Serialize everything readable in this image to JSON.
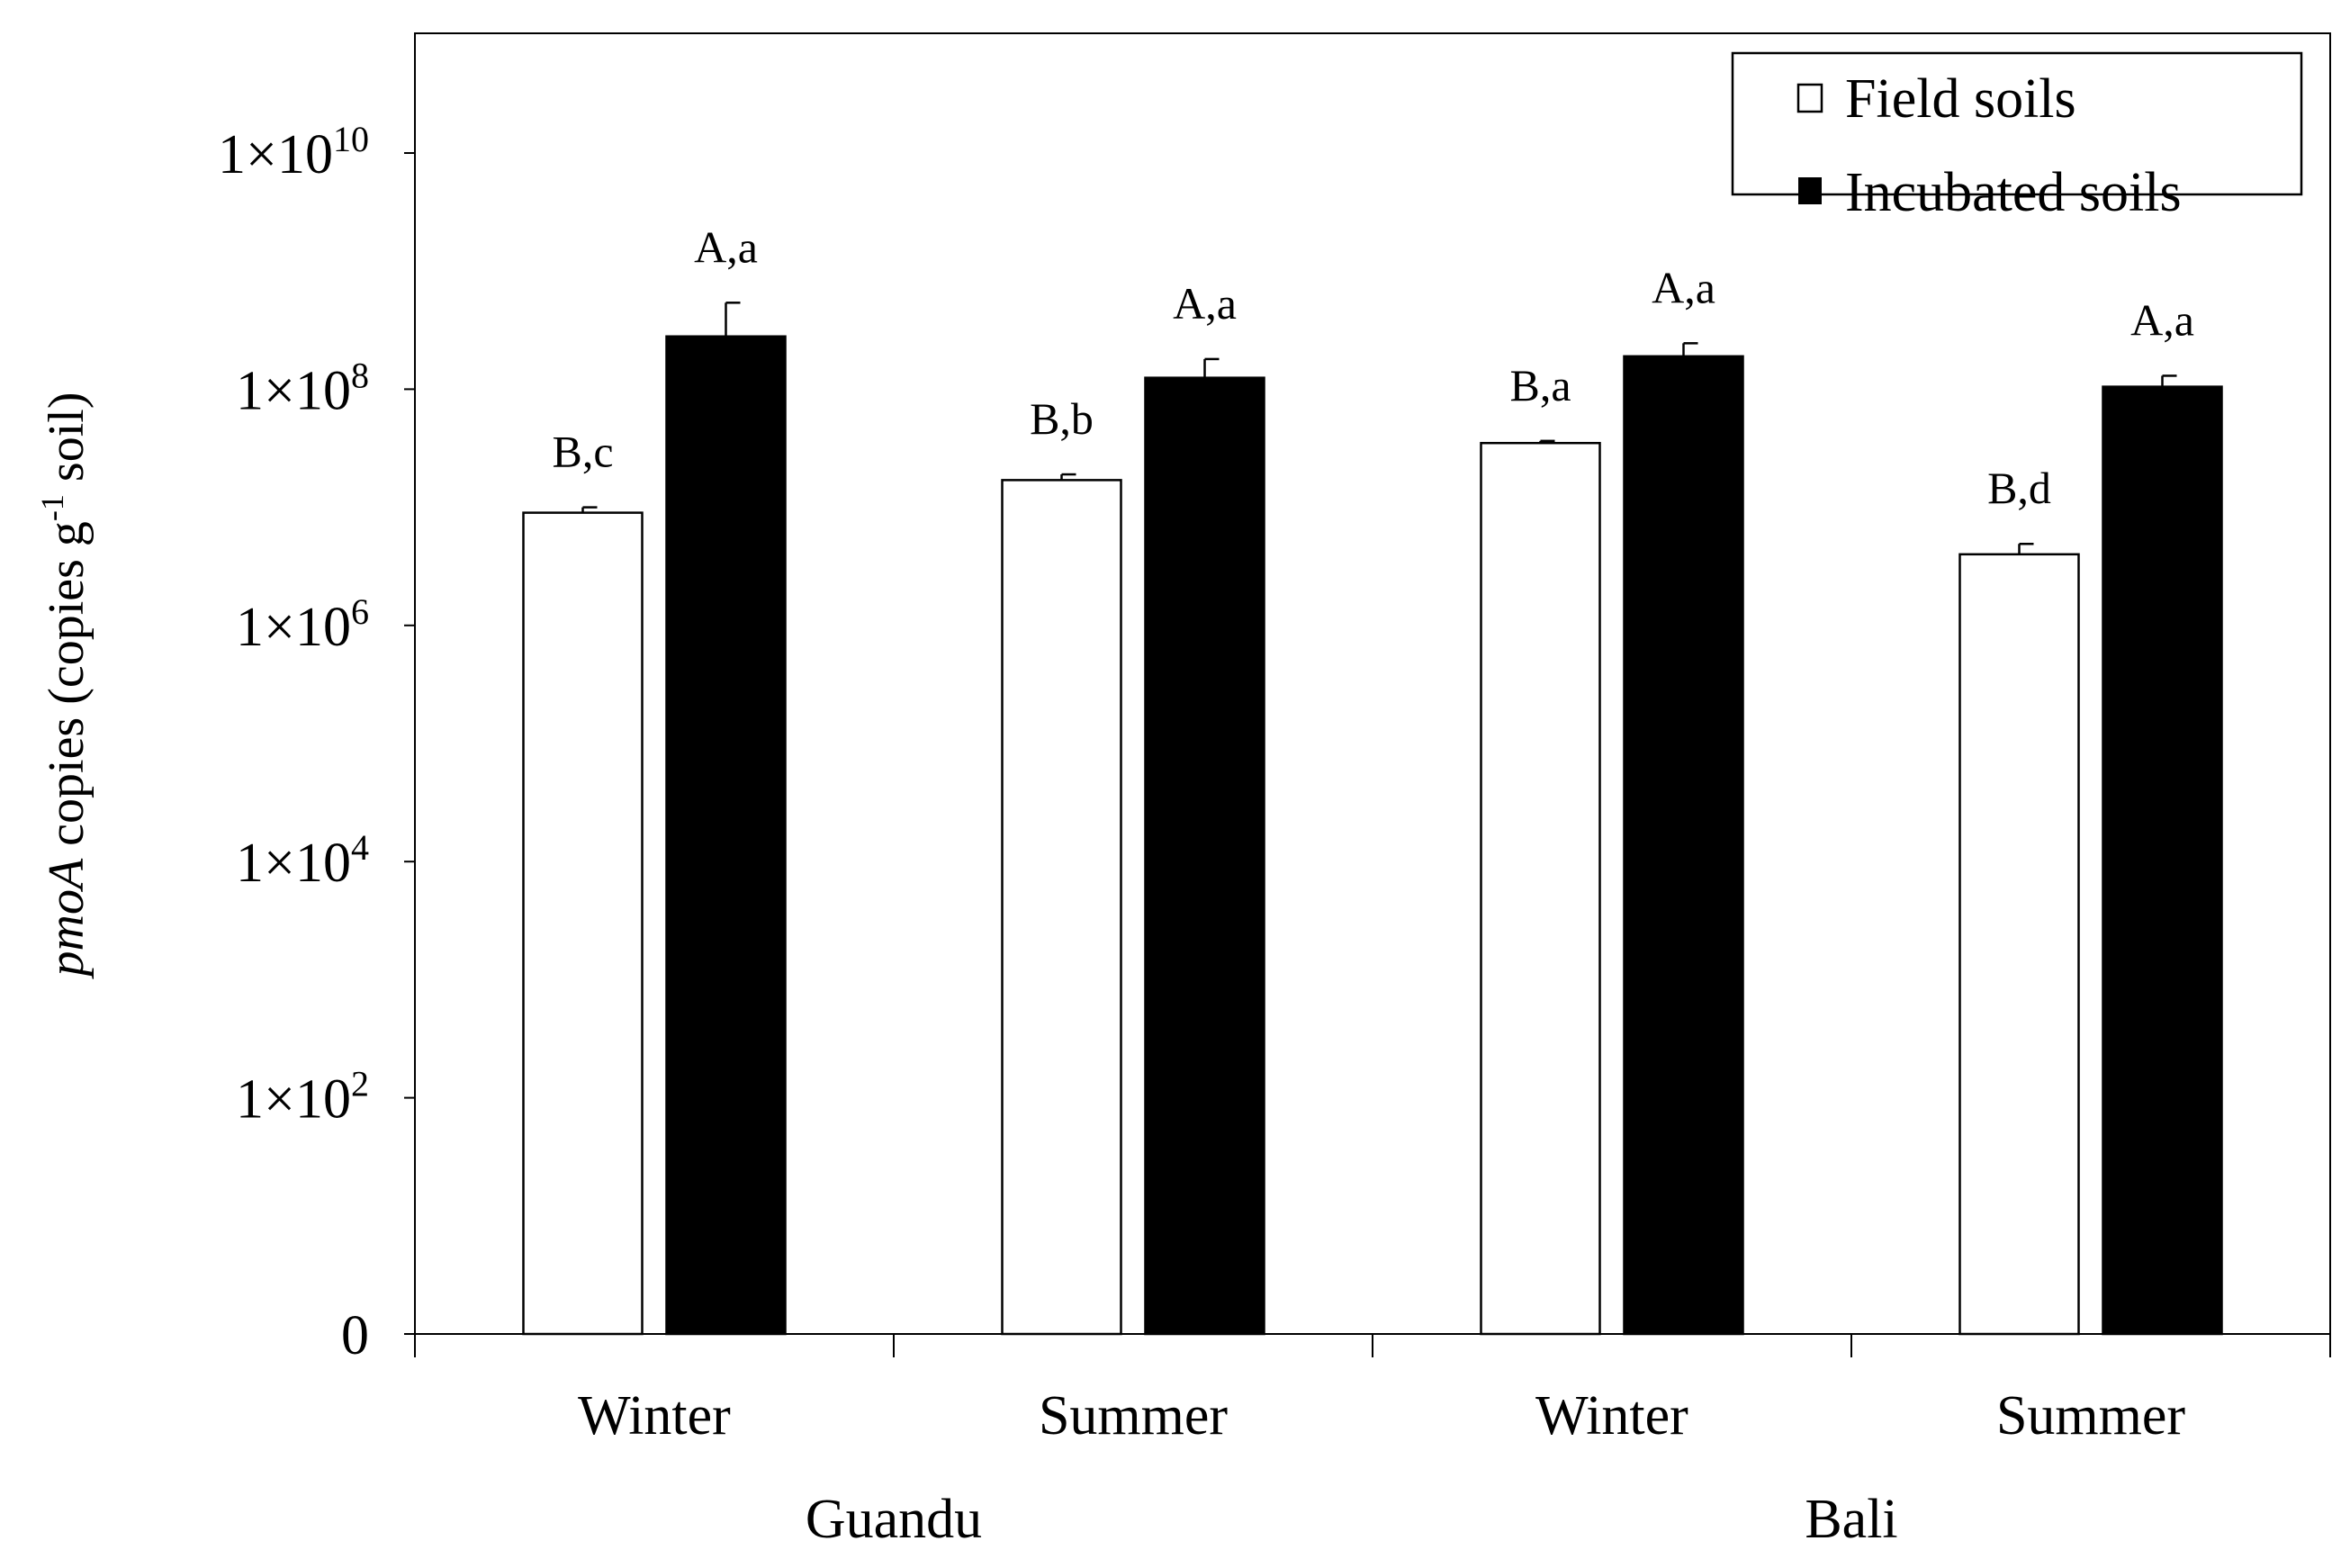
{
  "chart_data": {
    "type": "bar",
    "ylabel_italic": "pmoA",
    "ylabel_main": " copies (copies g",
    "ylabel_sup": "-1",
    "ylabel_tail": " soil)",
    "y_scale": "log10 (0 at baseline, labelled every 10^2)",
    "y_ticks": [
      {
        "label": "0",
        "base": "",
        "exp": ""
      },
      {
        "label": "",
        "base": "1×10",
        "exp": "2"
      },
      {
        "label": "",
        "base": "1×10",
        "exp": "4"
      },
      {
        "label": "",
        "base": "1×10",
        "exp": "6"
      },
      {
        "label": "",
        "base": "1×10",
        "exp": "8"
      },
      {
        "label": "",
        "base": "1×10",
        "exp": "10"
      }
    ],
    "categories": [
      "Winter",
      "Summer",
      "Winter",
      "Summer"
    ],
    "groups": [
      {
        "label": "Guandu",
        "categories": [
          0,
          1
        ]
      },
      {
        "label": "Bali",
        "categories": [
          2,
          3
        ]
      }
    ],
    "series": [
      {
        "name": "Field soils",
        "color": "#ffffff",
        "values": [
          9000000,
          17000000,
          35000000,
          4000000
        ],
        "errors": [
          1000000,
          2000000,
          1500000,
          900000
        ],
        "labels": [
          "B,c",
          "B,b",
          "B,a",
          "B,d"
        ]
      },
      {
        "name": "Incubated soils",
        "color": "#000000",
        "values": [
          280000000,
          125000000,
          190000000,
          105000000
        ],
        "errors": [
          260000000,
          55000000,
          55000000,
          25000000
        ],
        "labels": [
          "A,a",
          "A,a",
          "A,a",
          "A,a"
        ]
      }
    ],
    "legend_position": "top-right",
    "grid": false
  }
}
